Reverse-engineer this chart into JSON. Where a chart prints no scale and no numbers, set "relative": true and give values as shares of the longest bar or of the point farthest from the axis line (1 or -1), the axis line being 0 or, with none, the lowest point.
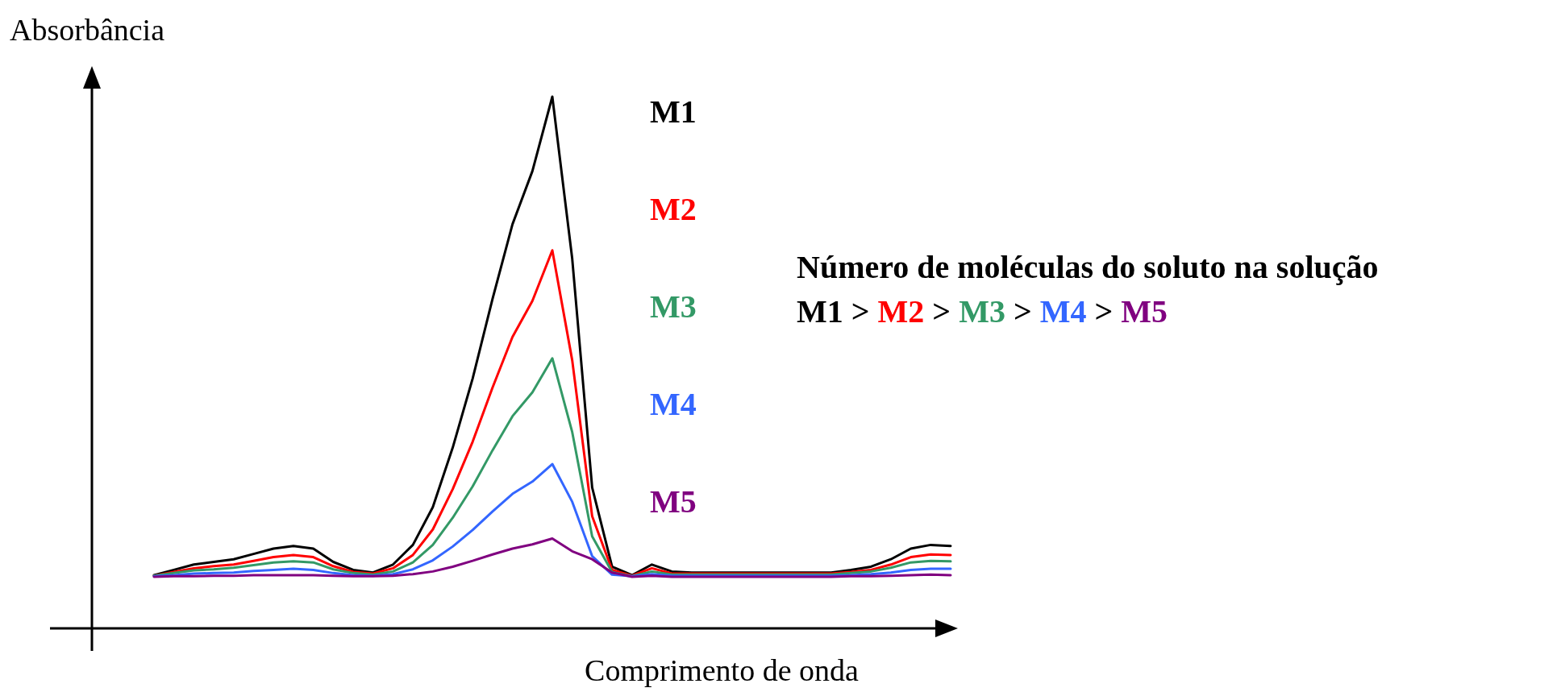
{
  "chart_data": {
    "type": "line",
    "relative": true,
    "xlabel": "Comprimento de onda",
    "ylabel": "Absorbância",
    "categories": [
      null,
      null,
      null,
      null,
      null,
      null,
      null,
      null,
      null,
      null,
      null,
      null,
      null,
      null,
      null,
      null,
      null,
      null,
      null,
      null,
      null,
      null,
      null,
      null,
      null,
      null,
      null,
      null,
      null,
      null,
      null,
      null,
      null,
      null,
      null,
      null,
      null,
      null,
      null,
      null,
      null
    ],
    "series": [
      {
        "name": "M1",
        "color": "#000000",
        "values": [
          0.1,
          0.11,
          0.12,
          0.125,
          0.13,
          0.14,
          0.15,
          0.155,
          0.15,
          0.125,
          0.11,
          0.105,
          0.12,
          0.157,
          0.228,
          0.34,
          0.47,
          0.62,
          0.76,
          0.86,
          1,
          0.695,
          0.265,
          0.116,
          0.1,
          0.12,
          0.107,
          0.105,
          0.105,
          0.105,
          0.105,
          0.105,
          0.105,
          0.105,
          0.105,
          0.11,
          0.116,
          0.13,
          0.15,
          0.157,
          0.155
        ]
      },
      {
        "name": "M2",
        "color": "#ff0000",
        "values": [
          0.099,
          0.106,
          0.113,
          0.117,
          0.12,
          0.127,
          0.134,
          0.138,
          0.134,
          0.117,
          0.106,
          0.103,
          0.113,
          0.138,
          0.186,
          0.262,
          0.351,
          0.453,
          0.548,
          0.616,
          0.711,
          0.504,
          0.211,
          0.11,
          0.099,
          0.113,
          0.103,
          0.103,
          0.103,
          0.103,
          0.103,
          0.103,
          0.103,
          0.103,
          0.103,
          0.106,
          0.11,
          0.12,
          0.134,
          0.139,
          0.138
        ]
      },
      {
        "name": "M3",
        "color": "#339966",
        "values": [
          0.099,
          0.104,
          0.109,
          0.111,
          0.114,
          0.119,
          0.124,
          0.126,
          0.124,
          0.111,
          0.104,
          0.101,
          0.107,
          0.124,
          0.157,
          0.208,
          0.267,
          0.335,
          0.399,
          0.444,
          0.508,
          0.369,
          0.173,
          0.106,
          0.098,
          0.107,
          0.101,
          0.101,
          0.101,
          0.101,
          0.101,
          0.101,
          0.101,
          0.101,
          0.101,
          0.104,
          0.107,
          0.114,
          0.124,
          0.127,
          0.126
        ]
      },
      {
        "name": "M4",
        "color": "#3366ff",
        "values": [
          0.098,
          0.1,
          0.103,
          0.104,
          0.105,
          0.108,
          0.11,
          0.112,
          0.11,
          0.104,
          0.1,
          0.099,
          0.102,
          0.111,
          0.128,
          0.154,
          0.185,
          0.22,
          0.253,
          0.276,
          0.309,
          0.238,
          0.136,
          0.101,
          0.098,
          0.102,
          0.099,
          0.099,
          0.099,
          0.099,
          0.099,
          0.099,
          0.099,
          0.099,
          0.099,
          0.1,
          0.102,
          0.105,
          0.11,
          0.112,
          0.112
        ]
      },
      {
        "name": "M5",
        "color": "#800080",
        "values": [
          0.097,
          0.098,
          0.098,
          0.099,
          0.099,
          0.1,
          0.1,
          0.1,
          0.1,
          0.099,
          0.098,
          0.098,
          0.099,
          0.102,
          0.107,
          0.116,
          0.127,
          0.139,
          0.15,
          0.158,
          0.169,
          0.145,
          0.13,
          0.105,
          0.097,
          0.099,
          0.097,
          0.097,
          0.097,
          0.097,
          0.097,
          0.097,
          0.097,
          0.097,
          0.097,
          0.098,
          0.098,
          0.099,
          0.1,
          0.101,
          0.1
        ]
      }
    ],
    "annotations": [
      "Número de moléculas do soluto na solução",
      "M1 > M2 > M3 > M4 > M5"
    ]
  }
}
